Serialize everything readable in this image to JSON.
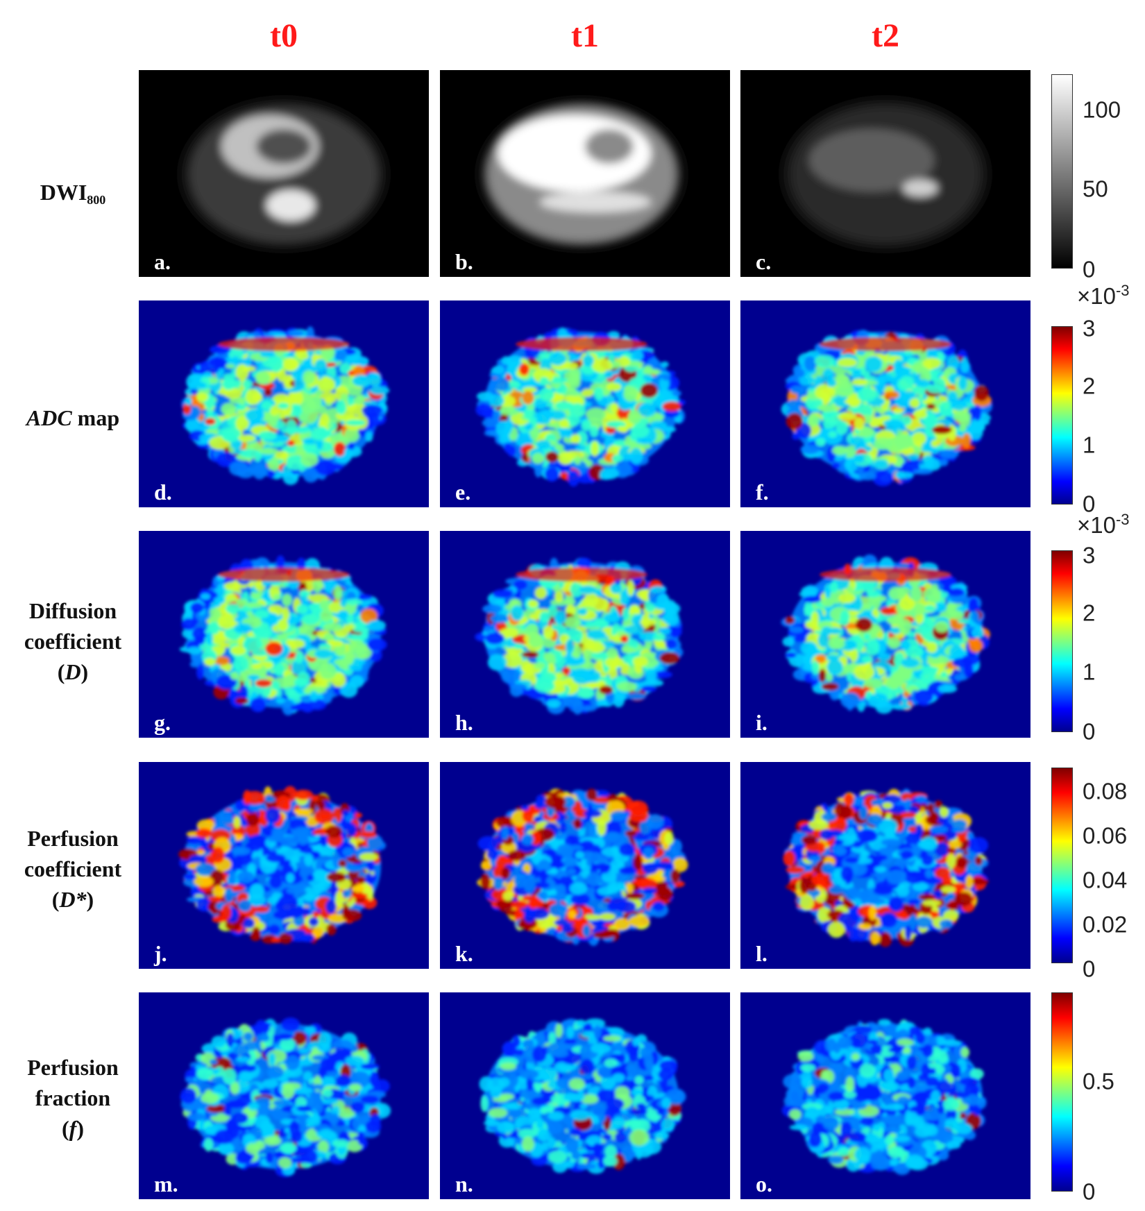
{
  "columns": [
    "t0",
    "t1",
    "t2"
  ],
  "rows": [
    {
      "label_main": "DWI",
      "label_sub": "800"
    },
    {
      "label_italic": "ADC",
      "label_rest": " map"
    },
    {
      "label_line1": "Diffusion",
      "label_line2": "coefficient",
      "label_line3_pre": "(",
      "label_line3_italic": "D",
      "label_line3_post": ")"
    },
    {
      "label_line1": "Perfusion",
      "label_line2": "coefficient",
      "label_line3_pre": "(",
      "label_line3_italic": "D*",
      "label_line3_post": ")"
    },
    {
      "label_line1": "Perfusion",
      "label_line2": "fraction",
      "label_line3_pre": "(",
      "label_line3_italic": "f",
      "label_line3_post": ")"
    }
  ],
  "panel_letters": [
    "a.",
    "b.",
    "c.",
    "d.",
    "e.",
    "f.",
    "g.",
    "h.",
    "i.",
    "j.",
    "k.",
    "l.",
    "m.",
    "n.",
    "o."
  ],
  "colorbars": [
    {
      "colormap": "gray",
      "ticks": [
        "100",
        "50",
        "0"
      ],
      "multiplier": ""
    },
    {
      "colormap": "jet",
      "ticks": [
        "3",
        "2",
        "1",
        "0"
      ],
      "multiplier_base": "×10",
      "multiplier_exp": "-3"
    },
    {
      "colormap": "jet",
      "ticks": [
        "3",
        "2",
        "1",
        "0"
      ],
      "multiplier_base": "×10",
      "multiplier_exp": "-3"
    },
    {
      "colormap": "jet",
      "ticks": [
        "0.08",
        "0.06",
        "0.04",
        "0.02",
        "0"
      ]
    },
    {
      "colormap": "jet",
      "ticks": [
        "0.5",
        "0"
      ]
    }
  ],
  "colors": {
    "header_red": "#ff1a1a",
    "map_background": "#00008f",
    "dwi_background": "#000000"
  }
}
